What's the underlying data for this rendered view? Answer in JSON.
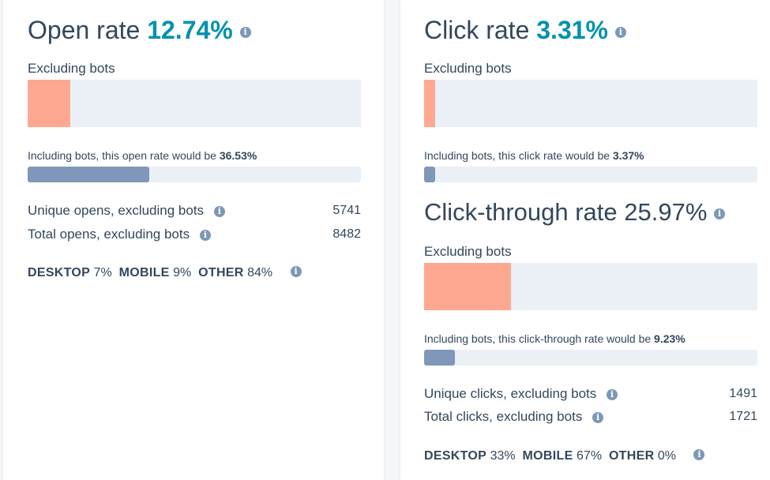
{
  "open": {
    "title": "Open rate",
    "rate": "12.74%",
    "excluding_label": "Excluding bots",
    "excluding_fraction": 0.1274,
    "including_text": "Including bots, this open rate would be ",
    "including_rate": "36.53%",
    "including_fraction": 0.3653,
    "stats": [
      {
        "label": "Unique opens, excluding bots",
        "value": "5741"
      },
      {
        "label": "Total opens, excluding bots",
        "value": "8482"
      }
    ],
    "devices": {
      "desktop_label": "DESKTOP",
      "desktop_value": "7%",
      "mobile_label": "MOBILE",
      "mobile_value": "9%",
      "other_label": "OTHER",
      "other_value": "84%"
    }
  },
  "click": {
    "title": "Click rate",
    "rate": "3.31%",
    "excluding_label": "Excluding bots",
    "excluding_fraction": 0.0331,
    "including_text": "Including bots, this click rate would be ",
    "including_rate": "3.37%",
    "including_fraction": 0.0337
  },
  "ctr": {
    "title": "Click-through rate",
    "rate": "25.97%",
    "excluding_label": "Excluding bots",
    "excluding_fraction": 0.2597,
    "including_text": "Including bots, this click-through rate would be ",
    "including_rate": "9.23%",
    "including_fraction": 0.0923,
    "stats": [
      {
        "label": "Unique clicks, excluding bots",
        "value": "1491"
      },
      {
        "label": "Total clicks, excluding bots",
        "value": "1721"
      }
    ],
    "devices": {
      "desktop_label": "DESKTOP",
      "desktop_value": "33%",
      "mobile_label": "MOBILE",
      "mobile_value": "67%",
      "other_label": "OTHER",
      "other_value": "0%"
    }
  },
  "icons": {
    "info": "info-icon"
  },
  "colors": {
    "accent": "#0091ae",
    "excluding_bar": "#ffa891",
    "including_bar": "#7f97b8",
    "track": "#eaf0f6"
  }
}
